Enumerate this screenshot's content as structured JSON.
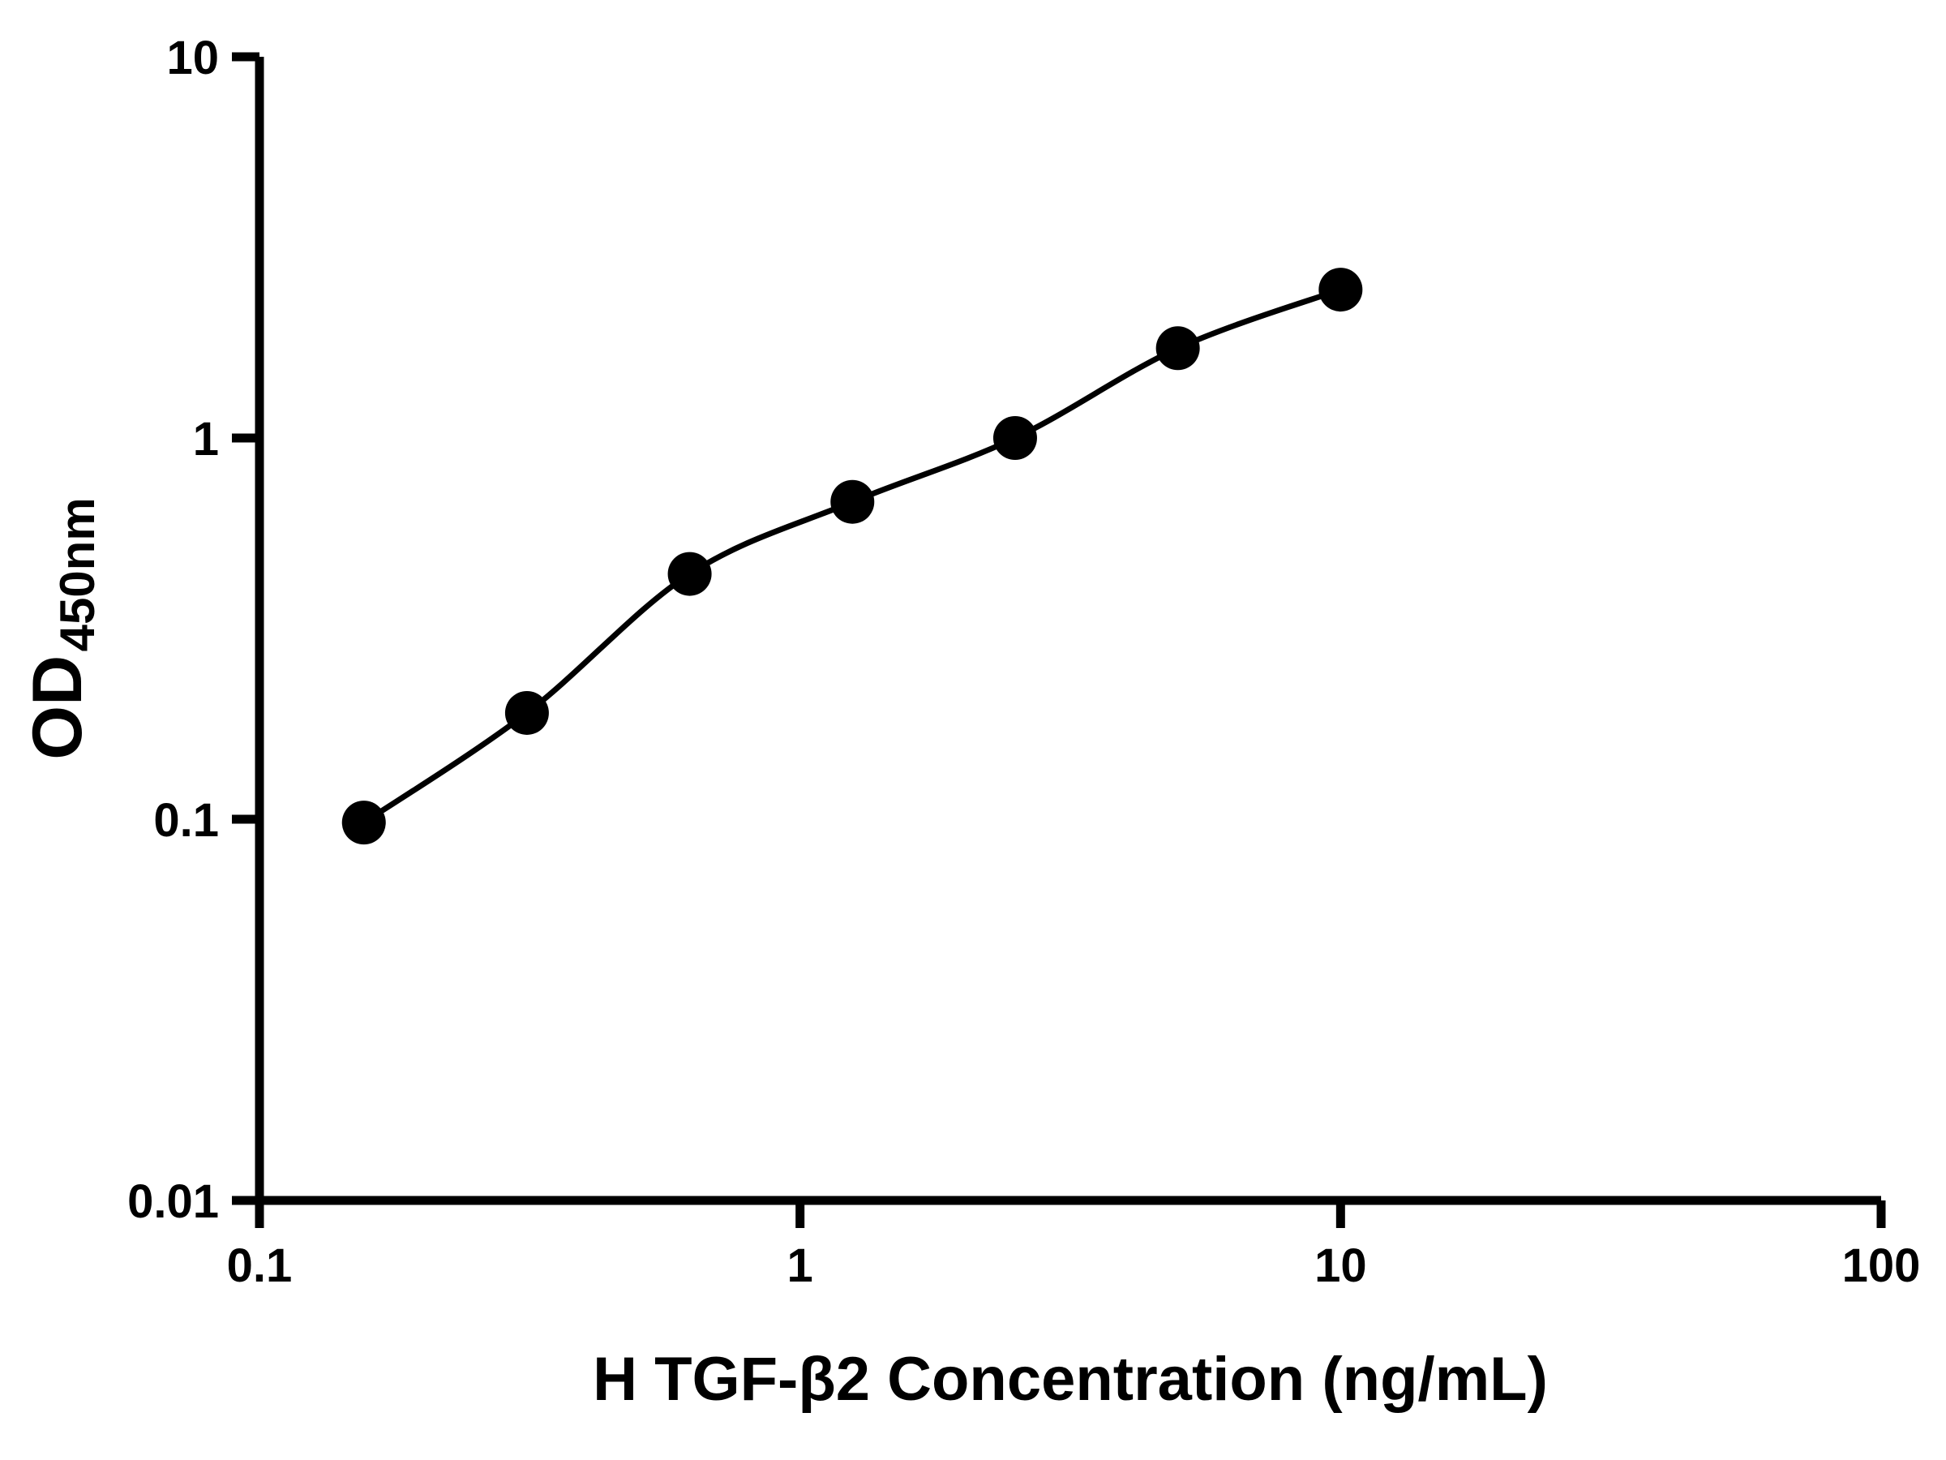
{
  "chart_data": {
    "type": "scatter",
    "title": "",
    "xlabel": "H TGF-β2 Concentration (ng/mL)",
    "ylabel_main": "OD",
    "ylabel_sub": "450nm",
    "x_scale": "log",
    "y_scale": "log",
    "xlim": [
      0.1,
      100
    ],
    "ylim": [
      0.01,
      10
    ],
    "grid": false,
    "legend": "none",
    "x_ticks": [
      {
        "value": 0.1,
        "label": "0.1"
      },
      {
        "value": 1,
        "label": "1"
      },
      {
        "value": 10,
        "label": "10"
      },
      {
        "value": 100,
        "label": "100"
      }
    ],
    "y_ticks": [
      {
        "value": 0.01,
        "label": "0.01"
      },
      {
        "value": 0.1,
        "label": "0.1"
      },
      {
        "value": 1,
        "label": "1"
      },
      {
        "value": 10,
        "label": "10"
      }
    ],
    "series": [
      {
        "name": "standard-curve",
        "marker": "filled-circle",
        "line": "smooth-fit",
        "points": [
          {
            "x": 0.156,
            "y": 0.098
          },
          {
            "x": 0.3125,
            "y": 0.19
          },
          {
            "x": 0.625,
            "y": 0.44
          },
          {
            "x": 1.25,
            "y": 0.68
          },
          {
            "x": 2.5,
            "y": 1.0
          },
          {
            "x": 5,
            "y": 1.72
          },
          {
            "x": 10,
            "y": 2.45
          }
        ]
      }
    ],
    "colors": {
      "axis": "#000000",
      "line": "#000000",
      "marker": "#000000",
      "background": "#ffffff"
    }
  }
}
